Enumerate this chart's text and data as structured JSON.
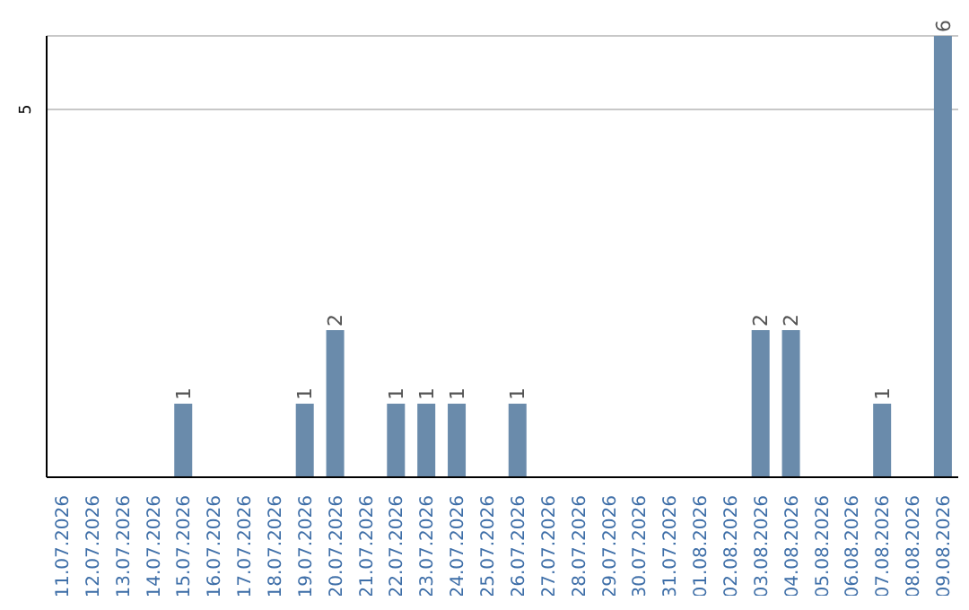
{
  "chart_data": {
    "type": "bar",
    "categories": [
      "11.07.2026",
      "12.07.2026",
      "13.07.2026",
      "14.07.2026",
      "15.07.2026",
      "16.07.2026",
      "17.07.2026",
      "18.07.2026",
      "19.07.2026",
      "20.07.2026",
      "21.07.2026",
      "22.07.2026",
      "23.07.2026",
      "24.07.2026",
      "25.07.2026",
      "26.07.2026",
      "27.07.2026",
      "28.07.2026",
      "29.07.2026",
      "30.07.2026",
      "31.07.2026",
      "01.08.2026",
      "02.08.2026",
      "03.08.2026",
      "04.08.2026",
      "05.08.2026",
      "06.08.2026",
      "07.08.2026",
      "08.08.2026",
      "09.08.2026"
    ],
    "values": [
      0,
      0,
      0,
      0,
      1,
      0,
      0,
      0,
      1,
      2,
      0,
      1,
      1,
      1,
      0,
      1,
      0,
      0,
      0,
      0,
      0,
      0,
      0,
      2,
      2,
      0,
      0,
      1,
      0,
      6
    ],
    "value_labels": [
      null,
      null,
      null,
      null,
      "1",
      null,
      null,
      null,
      "1",
      "2",
      null,
      "1",
      "1",
      "1",
      null,
      "1",
      null,
      null,
      null,
      null,
      null,
      null,
      null,
      "2",
      "2",
      null,
      null,
      "1",
      null,
      "6"
    ],
    "color": "#6a8bab",
    "ylim": [
      0,
      6
    ],
    "yticks": [
      5
    ],
    "grid": "y"
  }
}
